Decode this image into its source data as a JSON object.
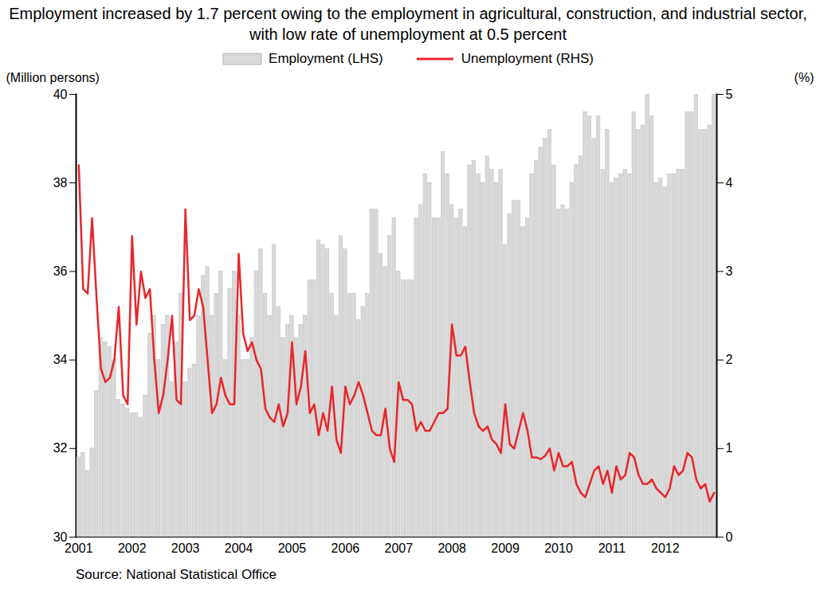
{
  "chart_data": {
    "type": "bar",
    "title": "Employment increased by 1.7 percent owing to the employment in agricultural, construction, and industrial sector, with low rate of unemployment at 0.5 percent",
    "source": "Source: National Statistical Office",
    "y_label": "(Million persons)",
    "y2_label": "(%)",
    "legend": "top",
    "categories": [
      "2001",
      null,
      null,
      null,
      null,
      null,
      null,
      null,
      null,
      null,
      null,
      null,
      "2002",
      null,
      null,
      null,
      null,
      null,
      null,
      null,
      null,
      null,
      null,
      null,
      "2003",
      null,
      null,
      null,
      null,
      null,
      null,
      null,
      null,
      null,
      null,
      null,
      "2004",
      null,
      null,
      null,
      null,
      null,
      null,
      null,
      null,
      null,
      null,
      null,
      "2005",
      null,
      null,
      null,
      null,
      null,
      null,
      null,
      null,
      null,
      null,
      null,
      "2006",
      null,
      null,
      null,
      null,
      null,
      null,
      null,
      null,
      null,
      null,
      null,
      "2007",
      null,
      null,
      null,
      null,
      null,
      null,
      null,
      null,
      null,
      null,
      null,
      "2008",
      null,
      null,
      null,
      null,
      null,
      null,
      null,
      null,
      null,
      null,
      null,
      "2009",
      null,
      null,
      null,
      null,
      null,
      null,
      null,
      null,
      null,
      null,
      null,
      "2010",
      null,
      null,
      null,
      null,
      null,
      null,
      null,
      null,
      null,
      null,
      null,
      "2011",
      null,
      null,
      null,
      null,
      null,
      null,
      null,
      null,
      null,
      null,
      null,
      "2012",
      null,
      null,
      null,
      null,
      null,
      null,
      null,
      null,
      null,
      null,
      null
    ],
    "series": [
      {
        "name": "Employment (LHS)",
        "type": "bar",
        "color": "#d9d9d9",
        "values": [
          31.8,
          31.9,
          31.5,
          32.0,
          33.3,
          34.5,
          34.4,
          34.3,
          34.0,
          33.1,
          33.0,
          32.9,
          32.8,
          32.8,
          32.7,
          33.2,
          34.6,
          35.0,
          34.0,
          34.8,
          35.0,
          33.5,
          34.4,
          35.5,
          33.5,
          33.8,
          33.9,
          35.0,
          35.9,
          36.1,
          35.0,
          35.5,
          36.0,
          34.0,
          35.6,
          36.0,
          35.0,
          34.0,
          34.0,
          34.5,
          36.0,
          36.5,
          35.5,
          35.0,
          36.6,
          35.2,
          34.5,
          34.8,
          35.0,
          34.5,
          34.8,
          35.0,
          35.8,
          35.8,
          36.7,
          36.6,
          36.5,
          35.5,
          35.0,
          36.8,
          36.5,
          35.5,
          35.5,
          34.9,
          35.2,
          35.5,
          37.4,
          37.4,
          36.4,
          36.1,
          36.8,
          37.2,
          36.0,
          35.8,
          35.8,
          35.8,
          37.2,
          37.5,
          38.2,
          38.0,
          37.2,
          37.2,
          38.7,
          38.2,
          37.5,
          37.2,
          37.4,
          37.0,
          38.4,
          38.5,
          38.2,
          38.0,
          38.6,
          38.3,
          38.0,
          38.3,
          36.6,
          37.3,
          37.6,
          37.6,
          37.0,
          37.2,
          38.2,
          38.5,
          38.8,
          39.0,
          39.2,
          38.4,
          37.4,
          37.5,
          37.4,
          38.0,
          38.4,
          38.6,
          39.6,
          39.5,
          39.0,
          39.5,
          38.3,
          39.2,
          38.0,
          38.1,
          38.2,
          38.3,
          38.2,
          39.6,
          39.2,
          39.3,
          40.0,
          39.5,
          38.0,
          38.1,
          37.9,
          38.2,
          38.2,
          38.3,
          38.3,
          39.6,
          39.6,
          40.0,
          39.2,
          39.2,
          39.3,
          40.0
        ]
      },
      {
        "name": "Unemployment (RHS)",
        "type": "line",
        "axis": "y2",
        "color": "#e8262a",
        "values": [
          4.2,
          2.8,
          2.75,
          3.6,
          2.7,
          1.9,
          1.75,
          1.8,
          2.0,
          2.6,
          1.6,
          1.5,
          3.4,
          2.4,
          3.0,
          2.7,
          2.8,
          2.0,
          1.4,
          1.6,
          2.0,
          2.5,
          1.55,
          1.5,
          3.7,
          2.45,
          2.5,
          2.8,
          2.6,
          2.0,
          1.4,
          1.5,
          1.8,
          1.6,
          1.5,
          1.5,
          3.2,
          2.3,
          2.1,
          2.2,
          2.0,
          1.9,
          1.45,
          1.35,
          1.3,
          1.5,
          1.25,
          1.4,
          2.2,
          1.5,
          1.7,
          2.1,
          1.4,
          1.5,
          1.15,
          1.4,
          1.2,
          1.7,
          1.1,
          0.95,
          1.7,
          1.5,
          1.6,
          1.75,
          1.6,
          1.4,
          1.2,
          1.15,
          1.15,
          1.45,
          1.0,
          0.85,
          1.75,
          1.55,
          1.55,
          1.5,
          1.2,
          1.3,
          1.2,
          1.2,
          1.3,
          1.4,
          1.4,
          1.45,
          2.4,
          2.05,
          2.05,
          2.15,
          1.75,
          1.4,
          1.25,
          1.2,
          1.25,
          1.1,
          1.05,
          0.95,
          1.5,
          1.05,
          1.0,
          1.2,
          1.4,
          1.2,
          0.9,
          0.9,
          0.88,
          0.92,
          1.0,
          0.75,
          0.95,
          0.8,
          0.8,
          0.85,
          0.6,
          0.5,
          0.45,
          0.6,
          0.75,
          0.8,
          0.6,
          0.75,
          0.5,
          0.8,
          0.65,
          0.7,
          0.95,
          0.9,
          0.7,
          0.6,
          0.6,
          0.65,
          0.55,
          0.5,
          0.45,
          0.55,
          0.8,
          0.7,
          0.75,
          0.95,
          0.9,
          0.65,
          0.55,
          0.6,
          0.4,
          0.5
        ]
      }
    ],
    "ylim": [
      30,
      40
    ],
    "yticks": [
      30,
      32,
      34,
      36,
      38,
      40
    ],
    "y2lim": [
      0,
      5
    ],
    "y2ticks": [
      0,
      1,
      2,
      3,
      4,
      5
    ]
  }
}
